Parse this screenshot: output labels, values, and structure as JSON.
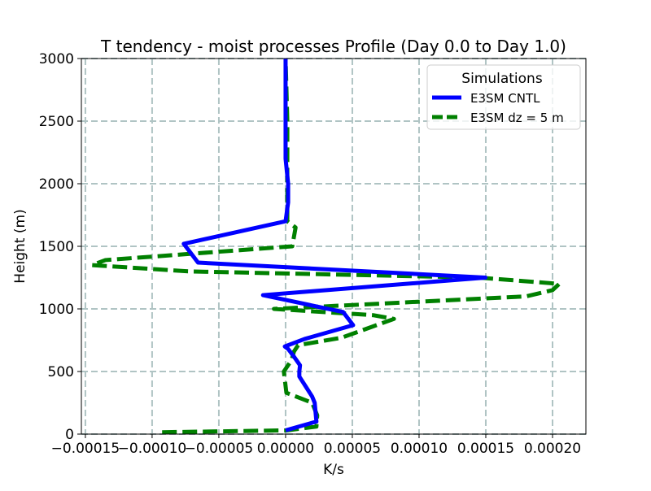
{
  "chart_data": {
    "type": "line",
    "title": "T tendency - moist processes Profile (Day 0.0 to Day 1.0)",
    "xlabel": "K/s",
    "ylabel": "Height (m)",
    "xlim": [
      -0.000153,
      0.000225
    ],
    "ylim": [
      0,
      3000
    ],
    "grid": true,
    "x_ticks": [
      -0.00015,
      -0.0001,
      -5e-05,
      0.0,
      5e-05,
      0.0001,
      0.00015,
      0.0002
    ],
    "x_tick_labels": [
      "−0.00015",
      "−0.00010",
      "−0.00005",
      "0.00000",
      "0.00005",
      "0.00010",
      "0.00015",
      "0.00020"
    ],
    "y_ticks": [
      0,
      500,
      1000,
      1500,
      2000,
      2500,
      3000
    ],
    "y_tick_labels": [
      "0",
      "500",
      "1000",
      "1500",
      "2000",
      "2500",
      "3000"
    ],
    "legend": {
      "title": "Simulations",
      "location": "upper right"
    },
    "series": [
      {
        "name": "E3SM CNTL",
        "color": "#0000ff",
        "style": "solid",
        "x": [
          0.0,
          2.31e-05,
          2.18e-05,
          1.99e-05,
          1.03e-05,
          1.03e-05,
          1.08e-05,
          6.2e-06,
          1.9e-06,
          -6e-07,
          1.43e-05,
          5.06e-05,
          4.31e-05,
          -1.69e-05,
          0.0001497,
          -6.56e-05,
          -7.63e-05,
          0.0,
          1.9e-06,
          1.9e-06,
          0.0,
          0.0,
          0.0,
          0.0
        ],
        "y": [
          30,
          100,
          250,
          300,
          460,
          500,
          550,
          620,
          680,
          700,
          760,
          870,
          975,
          1110,
          1250,
          1370,
          1520,
          1700,
          1850,
          2000,
          2200,
          2500,
          2800,
          3000
        ]
      },
      {
        "name": "E3SM dz = 5 m",
        "color": "#008000",
        "style": "dashed",
        "x": [
          -9.25e-05,
          1.3e-06,
          2.31e-05,
          2.37e-05,
          1.99e-05,
          6e-07,
          -1.3e-06,
          4.4e-06,
          6.3e-06,
          9.4e-06,
          4.19e-05,
          8.12e-05,
          6.56e-05,
          -8.7e-06,
          0.00018,
          0.0002,
          0.000205,
          0.000145,
          -7.31e-05,
          -0.000145,
          -0.000135,
          5e-06,
          7.5e-06,
          1.3e-06,
          1.3e-06,
          1.3e-06,
          0.0
        ],
        "y": [
          15,
          30,
          60,
          150,
          250,
          330,
          500,
          590,
          660,
          710,
          770,
          920,
          950,
          1000,
          1100,
          1150,
          1200,
          1250,
          1300,
          1350,
          1390,
          1500,
          1650,
          1700,
          2000,
          2500,
          3000
        ]
      }
    ]
  }
}
